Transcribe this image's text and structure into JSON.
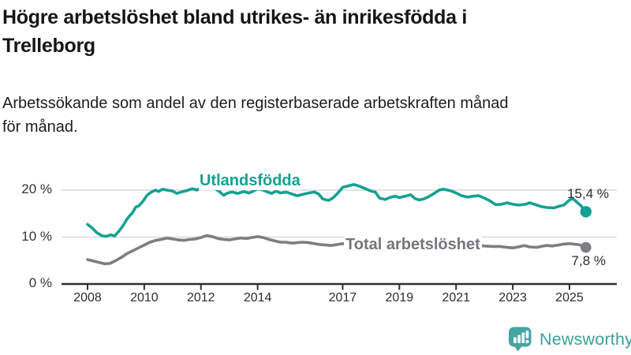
{
  "header": {
    "title_line1": "Högre arbetslöshet bland utrikes- än inrikesfödda i",
    "title_line2": "Trelleborg",
    "subtitle_line1": "Arbetssökande som andel av den registerbaserade arbetskraften månad",
    "subtitle_line2": "för månad."
  },
  "footer": {
    "brand": "Newsworthy",
    "logo_icon": "bar-chart-speech-bubble-icon"
  },
  "colors": {
    "accent_teal": "#14a192",
    "series_gray": "#7d7d82",
    "gray_label": "#76767a",
    "grid": "#d9d9d9",
    "axis": "#2f2f2f",
    "title_text": "#161613",
    "tick_text": "#2d2d2d",
    "brand_teal": "#3f9e9a"
  },
  "chart_data": {
    "type": "line",
    "title": "Högre arbetslöshet bland utrikes- än inrikesfödda i Trelleborg",
    "subtitle": "Arbetssökande som andel av den registerbaserade arbetskraften månad för månad.",
    "unit": "%",
    "legend_position": "inline-labels",
    "x_axis": {
      "range": [
        2007.9,
        2026.2
      ],
      "grid": false,
      "ticks": [
        {
          "value": 2008,
          "label": "2008"
        },
        {
          "value": 2010,
          "label": "2010"
        },
        {
          "value": 2012,
          "label": "2012"
        },
        {
          "value": 2014,
          "label": "2014"
        },
        {
          "value": 2017,
          "label": "2017"
        },
        {
          "value": 2019,
          "label": "2019"
        },
        {
          "value": 2021,
          "label": "2021"
        },
        {
          "value": 2023,
          "label": "2023"
        },
        {
          "value": 2025,
          "label": "2025"
        }
      ]
    },
    "y_axis": {
      "range": [
        0,
        22.6
      ],
      "grid": true,
      "ticks": [
        {
          "value": 0,
          "label": "0 %"
        },
        {
          "value": 10,
          "label": "10 %"
        },
        {
          "value": 20,
          "label": "20 %"
        }
      ]
    },
    "series": [
      {
        "name": "Utlandsfödda",
        "color": "#14a192",
        "end_label": "15,4 %",
        "end_value": 15.4,
        "points": [
          [
            2008.0,
            12.7
          ],
          [
            2008.17,
            11.9
          ],
          [
            2008.33,
            10.9
          ],
          [
            2008.5,
            10.3
          ],
          [
            2008.67,
            10.15
          ],
          [
            2008.83,
            10.5
          ],
          [
            2008.95,
            10.2
          ],
          [
            2009.1,
            11.2
          ],
          [
            2009.25,
            12.4
          ],
          [
            2009.4,
            13.9
          ],
          [
            2009.5,
            14.6
          ],
          [
            2009.6,
            15.3
          ],
          [
            2009.7,
            16.4
          ],
          [
            2009.8,
            16.6
          ],
          [
            2009.95,
            17.6
          ],
          [
            2010.1,
            18.9
          ],
          [
            2010.25,
            19.6
          ],
          [
            2010.4,
            20.0
          ],
          [
            2010.5,
            19.7
          ],
          [
            2010.65,
            20.2
          ],
          [
            2010.8,
            20.0
          ],
          [
            2011.0,
            19.8
          ],
          [
            2011.15,
            19.3
          ],
          [
            2011.3,
            19.6
          ],
          [
            2011.5,
            19.9
          ],
          [
            2011.7,
            20.3
          ],
          [
            2011.85,
            20.0
          ],
          [
            2012.0,
            20.5
          ],
          [
            2012.15,
            21.1
          ],
          [
            2012.3,
            21.5
          ],
          [
            2012.5,
            20.3
          ],
          [
            2012.65,
            19.7
          ],
          [
            2012.8,
            18.9
          ],
          [
            2012.95,
            19.4
          ],
          [
            2013.1,
            19.6
          ],
          [
            2013.3,
            19.3
          ],
          [
            2013.5,
            19.7
          ],
          [
            2013.7,
            19.4
          ],
          [
            2013.85,
            19.8
          ],
          [
            2014.0,
            20.3
          ],
          [
            2014.2,
            20.0
          ],
          [
            2014.35,
            19.6
          ],
          [
            2014.5,
            19.3
          ],
          [
            2014.65,
            19.8
          ],
          [
            2014.8,
            19.4
          ],
          [
            2015.0,
            19.6
          ],
          [
            2015.2,
            19.2
          ],
          [
            2015.4,
            18.8
          ],
          [
            2015.6,
            19.1
          ],
          [
            2015.8,
            19.4
          ],
          [
            2016.0,
            19.6
          ],
          [
            2016.15,
            19.2
          ],
          [
            2016.3,
            18.1
          ],
          [
            2016.5,
            17.8
          ],
          [
            2016.65,
            18.3
          ],
          [
            2016.8,
            19.2
          ],
          [
            2017.0,
            20.6
          ],
          [
            2017.2,
            20.9
          ],
          [
            2017.4,
            21.2
          ],
          [
            2017.6,
            20.8
          ],
          [
            2017.8,
            20.3
          ],
          [
            2018.0,
            19.8
          ],
          [
            2018.15,
            19.6
          ],
          [
            2018.3,
            18.3
          ],
          [
            2018.5,
            18.0
          ],
          [
            2018.7,
            18.5
          ],
          [
            2018.85,
            18.7
          ],
          [
            2019.0,
            18.4
          ],
          [
            2019.2,
            18.7
          ],
          [
            2019.4,
            19.0
          ],
          [
            2019.55,
            18.2
          ],
          [
            2019.7,
            17.9
          ],
          [
            2019.85,
            18.1
          ],
          [
            2020.0,
            18.5
          ],
          [
            2020.2,
            19.2
          ],
          [
            2020.4,
            20.0
          ],
          [
            2020.55,
            20.2
          ],
          [
            2020.7,
            20.0
          ],
          [
            2020.85,
            19.8
          ],
          [
            2021.0,
            19.4
          ],
          [
            2021.2,
            18.8
          ],
          [
            2021.4,
            18.5
          ],
          [
            2021.6,
            18.7
          ],
          [
            2021.8,
            18.8
          ],
          [
            2022.0,
            18.3
          ],
          [
            2022.2,
            17.7
          ],
          [
            2022.4,
            16.9
          ],
          [
            2022.6,
            17.0
          ],
          [
            2022.8,
            17.3
          ],
          [
            2023.0,
            17.0
          ],
          [
            2023.2,
            16.8
          ],
          [
            2023.45,
            17.0
          ],
          [
            2023.6,
            17.3
          ],
          [
            2023.8,
            16.9
          ],
          [
            2024.0,
            16.5
          ],
          [
            2024.2,
            16.3
          ],
          [
            2024.45,
            16.2
          ],
          [
            2024.6,
            16.5
          ],
          [
            2024.8,
            16.8
          ],
          [
            2025.0,
            17.9
          ],
          [
            2025.12,
            18.2
          ],
          [
            2025.25,
            17.5
          ],
          [
            2025.4,
            16.7
          ],
          [
            2025.58,
            15.4
          ]
        ]
      },
      {
        "name": "Total arbetslöshet",
        "color": "#7d7d82",
        "end_label": "7,8 %",
        "end_value": 7.8,
        "points": [
          [
            2008.0,
            5.2
          ],
          [
            2008.2,
            4.9
          ],
          [
            2008.4,
            4.6
          ],
          [
            2008.6,
            4.3
          ],
          [
            2008.8,
            4.4
          ],
          [
            2009.0,
            5.0
          ],
          [
            2009.2,
            5.7
          ],
          [
            2009.4,
            6.5
          ],
          [
            2009.6,
            7.1
          ],
          [
            2009.8,
            7.7
          ],
          [
            2010.0,
            8.3
          ],
          [
            2010.2,
            8.9
          ],
          [
            2010.4,
            9.3
          ],
          [
            2010.6,
            9.5
          ],
          [
            2010.8,
            9.8
          ],
          [
            2011.0,
            9.6
          ],
          [
            2011.2,
            9.4
          ],
          [
            2011.4,
            9.3
          ],
          [
            2011.6,
            9.5
          ],
          [
            2011.8,
            9.6
          ],
          [
            2012.0,
            9.9
          ],
          [
            2012.2,
            10.3
          ],
          [
            2012.4,
            10.1
          ],
          [
            2012.6,
            9.7
          ],
          [
            2012.8,
            9.5
          ],
          [
            2013.0,
            9.4
          ],
          [
            2013.2,
            9.6
          ],
          [
            2013.4,
            9.8
          ],
          [
            2013.6,
            9.7
          ],
          [
            2013.8,
            9.9
          ],
          [
            2014.0,
            10.1
          ],
          [
            2014.2,
            9.9
          ],
          [
            2014.4,
            9.5
          ],
          [
            2014.6,
            9.2
          ],
          [
            2014.8,
            8.9
          ],
          [
            2015.0,
            8.9
          ],
          [
            2015.2,
            8.7
          ],
          [
            2015.4,
            8.8
          ],
          [
            2015.6,
            8.9
          ],
          [
            2015.8,
            8.8
          ],
          [
            2016.0,
            8.6
          ],
          [
            2016.2,
            8.4
          ],
          [
            2016.4,
            8.3
          ],
          [
            2016.6,
            8.2
          ],
          [
            2016.8,
            8.4
          ],
          [
            2017.0,
            8.6
          ],
          [
            2017.3,
            8.4
          ],
          [
            2017.6,
            8.2
          ],
          [
            2017.8,
            8.0
          ],
          [
            2018.0,
            7.9
          ],
          [
            2018.3,
            7.7
          ],
          [
            2018.6,
            7.5
          ],
          [
            2018.8,
            7.5
          ],
          [
            2019.0,
            7.5
          ],
          [
            2019.3,
            7.6
          ],
          [
            2019.6,
            7.7
          ],
          [
            2019.8,
            7.9
          ],
          [
            2020.0,
            8.1
          ],
          [
            2020.3,
            9.0
          ],
          [
            2020.5,
            9.3
          ],
          [
            2020.8,
            9.1
          ],
          [
            2021.0,
            8.9
          ],
          [
            2021.3,
            8.6
          ],
          [
            2021.6,
            8.4
          ],
          [
            2021.8,
            8.2
          ],
          [
            2022.0,
            8.1
          ],
          [
            2022.3,
            8.0
          ],
          [
            2022.55,
            8.0
          ],
          [
            2022.8,
            7.8
          ],
          [
            2023.0,
            7.7
          ],
          [
            2023.2,
            7.9
          ],
          [
            2023.4,
            8.2
          ],
          [
            2023.6,
            7.9
          ],
          [
            2023.85,
            7.8
          ],
          [
            2024.0,
            8.0
          ],
          [
            2024.2,
            8.2
          ],
          [
            2024.4,
            8.1
          ],
          [
            2024.6,
            8.3
          ],
          [
            2024.8,
            8.5
          ],
          [
            2025.0,
            8.6
          ],
          [
            2025.15,
            8.5
          ],
          [
            2025.3,
            8.4
          ],
          [
            2025.45,
            8.2
          ],
          [
            2025.58,
            7.8
          ]
        ]
      }
    ]
  }
}
